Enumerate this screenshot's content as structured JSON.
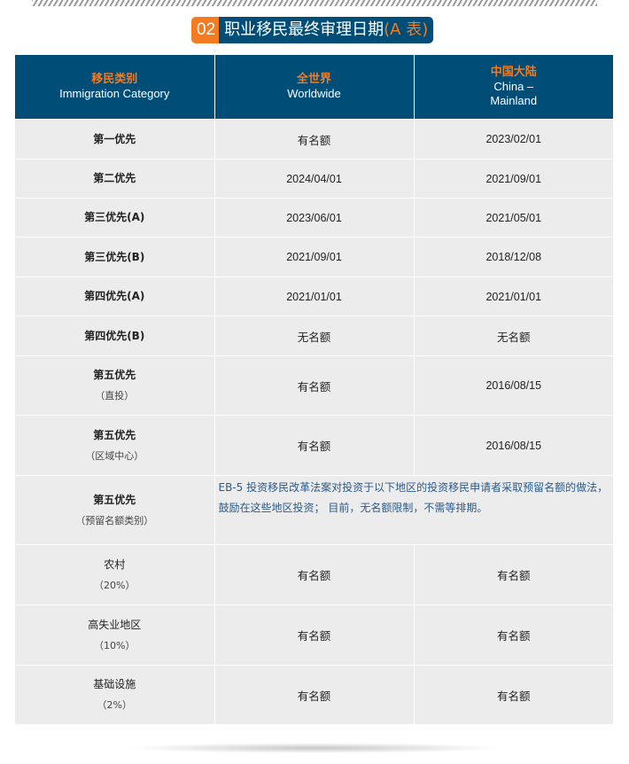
{
  "title": {
    "number": "02",
    "text": "职业移民最终审理日期",
    "suffix": "(A 表)"
  },
  "header": [
    {
      "cn": "移民类别",
      "en": "Immigration Category"
    },
    {
      "cn": "全世界",
      "en": "Worldwide"
    },
    {
      "cn": "中国大陆",
      "en": "China –",
      "en2": "Mainland"
    }
  ],
  "rows": [
    {
      "cat": "第一优先",
      "ww": "有名额",
      "cn": "2023/02/01"
    },
    {
      "cat": "第二优先",
      "ww": "2024/04/01",
      "cn": "2021/09/01"
    },
    {
      "cat": "第三优先(A)",
      "ww": "2023/06/01",
      "cn": "2021/05/01"
    },
    {
      "cat": "第三优先(B)",
      "ww": "2021/09/01",
      "cn": "2018/12/08"
    },
    {
      "cat": "第四优先(A)",
      "ww": "2021/01/01",
      "cn": "2021/01/01"
    },
    {
      "cat": "第四优先(B)",
      "ww": "无名额",
      "cn": "无名额"
    },
    {
      "cat": "第五优先",
      "sub": "（直投）",
      "ww": "有名额",
      "cn": "2016/08/15"
    },
    {
      "cat": "第五优先",
      "sub": "（区域中心）",
      "ww": "有名额",
      "cn": "2016/08/15"
    },
    {
      "cat": "第五优先",
      "sub": "（预留名额类别）",
      "note": "EB-5 投资移民改革法案对投资于以下地区的投资移民申请者采取预留名额的做法，鼓励在这些地区投资； 目前，无名额限制，不需等排期。"
    },
    {
      "cat2": "农村",
      "sub": "（20%）",
      "ww": "有名额",
      "cn": "有名额"
    },
    {
      "cat2": "高失业地区",
      "sub": "（10%）",
      "ww": "有名额",
      "cn": "有名额"
    },
    {
      "cat2": "基础设施",
      "sub": "（2%）",
      "ww": "有名额",
      "cn": "有名额"
    }
  ]
}
